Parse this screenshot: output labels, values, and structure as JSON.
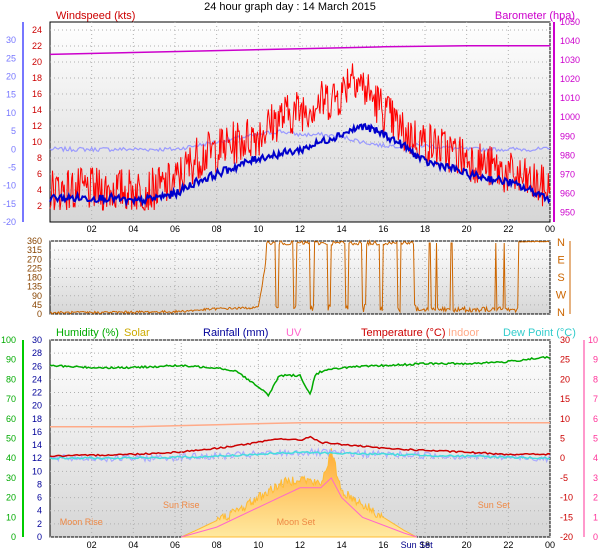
{
  "title": "24 hour graph day : 14 March 2015",
  "colors": {
    "windspeed": "#ff0000",
    "windaverage": "#0000cc",
    "windgust_text": "#cc0000",
    "barometer": "#cc00cc",
    "temperature_scale": "#7777ff",
    "direction": "#cc6600",
    "humidity": "#00aa00",
    "solar": "#ffbb33",
    "rainfall": "#000099",
    "uv": "#ff66cc",
    "temperature": "#cc0000",
    "indoor": "#ffaa88",
    "dewpoint": "#33cccc",
    "dewpoint_line": "#44dddd",
    "leftaxis": "#00cc00",
    "rightaxis": "#ff3399"
  },
  "chart_data": [
    {
      "type": "line",
      "name": "wind",
      "title": "24 hour graph day : 14 March 2015",
      "legend": {
        "windspeed": "Windspeed (kts)",
        "barometer": "Barometer (hpa)"
      },
      "x_ticks": [
        "02",
        "04",
        "06",
        "08",
        "10",
        "12",
        "14",
        "16",
        "18",
        "20",
        "22",
        "00"
      ],
      "x_range_hours": [
        0,
        24
      ],
      "y_left_outer": {
        "range": [
          -20,
          35
        ],
        "ticks": [
          "-20",
          "-15",
          "-10",
          "-5",
          "0",
          "5",
          "10",
          "15",
          "20",
          "25",
          "30"
        ]
      },
      "y_left_inner": {
        "label": "Windspeed (kts)",
        "range": [
          0,
          25
        ],
        "ticks": [
          "2",
          "4",
          "6",
          "8",
          "10",
          "12",
          "14",
          "16",
          "18",
          "20",
          "22",
          "24"
        ]
      },
      "y_right": {
        "label": "Barometer (hpa)",
        "range": [
          945,
          1050
        ],
        "ticks": [
          "950",
          "960",
          "970",
          "980",
          "990",
          "1000",
          "1010",
          "1020",
          "1030",
          "1040",
          "1050"
        ]
      },
      "series": [
        {
          "name": "Windspeed (kts)",
          "key": "windspeed",
          "axis": "left",
          "hours": [
            0,
            1,
            2,
            3,
            4,
            5,
            6,
            7,
            8,
            9,
            10,
            11,
            12,
            13,
            14,
            14.5,
            15,
            16,
            17,
            18,
            19,
            20,
            21,
            22,
            23,
            24
          ],
          "values": [
            4,
            4,
            4,
            4,
            4,
            4,
            5,
            8,
            9,
            10,
            11,
            13,
            14,
            15,
            16,
            19,
            17,
            14,
            11,
            10,
            9,
            8,
            7,
            6,
            5,
            4
          ]
        },
        {
          "key": "windaverage",
          "axis": "left",
          "hours": [
            0,
            1,
            2,
            3,
            4,
            5,
            6,
            7,
            8,
            9,
            10,
            11,
            12,
            13,
            14,
            15,
            16,
            17,
            18,
            19,
            20,
            21,
            22,
            23,
            24
          ],
          "values": [
            3,
            3,
            3,
            3,
            2.5,
            3,
            3.5,
            5,
            6,
            7,
            8,
            8.5,
            9,
            10,
            11,
            12,
            11,
            9.5,
            7.5,
            7,
            6,
            5.5,
            5,
            4,
            3
          ]
        },
        {
          "key": "temperature_outer",
          "axis": "outer",
          "hours": [
            0,
            2,
            4,
            6,
            8,
            10,
            11,
            12,
            13,
            14,
            15,
            16,
            18,
            20,
            22,
            24
          ],
          "values": [
            0,
            0,
            0,
            0,
            2,
            4,
            5,
            4,
            4,
            3.5,
            2,
            1,
            1,
            0,
            0,
            0
          ]
        },
        {
          "name": "Barometer (hpa)",
          "key": "barometer",
          "axis": "right",
          "hours": [
            0,
            4,
            8,
            12,
            16,
            20,
            24
          ],
          "values": [
            1033,
            1034,
            1035,
            1036,
            1037,
            1037.5,
            1037.5
          ]
        }
      ]
    },
    {
      "type": "line",
      "name": "direction",
      "y_left": {
        "range": [
          0,
          360
        ],
        "ticks": [
          "0",
          "45",
          "90",
          "135",
          "180",
          "225",
          "270",
          "315",
          "360"
        ]
      },
      "y_right": {
        "ticks": [
          "N",
          "E",
          "S",
          "W",
          "N"
        ]
      },
      "x_range_hours": [
        0,
        24
      ],
      "series": [
        {
          "key": "direction",
          "hours": [
            0,
            6,
            8,
            10,
            10.5,
            10.6,
            11,
            11.1,
            12,
            12.1,
            13,
            14,
            16,
            17.7,
            17.8,
            18,
            18.3,
            19,
            20,
            21,
            22,
            22.5,
            24
          ],
          "values": [
            0,
            5,
            20,
            25,
            340,
            20,
            345,
            10,
            330,
            15,
            355,
            355,
            355,
            355,
            20,
            355,
            20,
            10,
            15,
            10,
            20,
            355,
            355
          ]
        }
      ]
    },
    {
      "type": "line",
      "name": "climate",
      "legend": {
        "humidity": "Humidity (%)",
        "solar": "Solar",
        "rainfall": "Rainfall (mm)",
        "uv": "UV",
        "temperature": "Temperature (°C)",
        "indoor": "Indoor",
        "dewpoint": "Dew Point (°C)"
      },
      "x_ticks": [
        "02",
        "04",
        "06",
        "08",
        "10",
        "12",
        "14",
        "16",
        "18",
        "20",
        "22",
        "00"
      ],
      "x_range_hours": [
        0,
        24
      ],
      "y_left_outer": {
        "range": [
          0,
          100
        ],
        "ticks": [
          "0",
          "10",
          "20",
          "30",
          "40",
          "50",
          "60",
          "70",
          "80",
          "90",
          "100"
        ]
      },
      "y_left_inner": {
        "label": "Rainfall (mm)",
        "range": [
          0,
          30
        ],
        "ticks": [
          "0",
          "2",
          "4",
          "6",
          "8",
          "10",
          "12",
          "14",
          "16",
          "18",
          "20",
          "22",
          "24",
          "26",
          "28",
          "30"
        ]
      },
      "y_right_inner": {
        "label": "Temperature (°C)",
        "range": [
          -20,
          30
        ],
        "ticks": [
          "-20",
          "-15",
          "-10",
          "-5",
          "0",
          "5",
          "10",
          "15",
          "20",
          "25",
          "30"
        ]
      },
      "y_right_outer": {
        "label": "UV",
        "range": [
          0,
          10
        ],
        "ticks": [
          "0",
          "1",
          "2",
          "3",
          "4",
          "5",
          "6",
          "7",
          "8",
          "9",
          "10"
        ]
      },
      "annotations": [
        {
          "text": "Moon Rise",
          "hour": 1.5
        },
        {
          "text": "Sun Rise",
          "hour": 6.3
        },
        {
          "text": "Moon Set",
          "hour": 11.8
        },
        {
          "text": "Sun Set",
          "hour": 17.6
        },
        {
          "text": "Sun Set",
          "hour": 21.3
        }
      ],
      "series": [
        {
          "name": "Humidity (%)",
          "key": "humidity",
          "axis": "left_outer",
          "hours": [
            0,
            2,
            4,
            6,
            8,
            9,
            10,
            10.5,
            11,
            12,
            12.5,
            12.7,
            13,
            14,
            16,
            18,
            20,
            22,
            23.5,
            24
          ],
          "values": [
            87,
            86,
            86,
            87,
            86,
            84,
            76,
            72,
            82,
            82,
            72,
            82,
            84,
            86,
            87,
            88,
            88,
            89,
            91,
            91
          ]
        },
        {
          "name": "Indoor",
          "key": "indoor",
          "axis": "right_inner",
          "hours": [
            0,
            4,
            8,
            12,
            16,
            20,
            24
          ],
          "values": [
            8,
            8,
            8.5,
            9,
            9,
            9,
            9
          ]
        },
        {
          "name": "Temperature (°C)",
          "key": "temperature",
          "axis": "right_inner",
          "hours": [
            0,
            4,
            6,
            8,
            10,
            11,
            12,
            12.5,
            13,
            14,
            16,
            18,
            20,
            22,
            24
          ],
          "values": [
            0.5,
            1,
            1.5,
            2.5,
            4,
            5,
            4.5,
            5.5,
            4,
            3.5,
            2.5,
            2,
            1.5,
            1,
            1
          ]
        },
        {
          "name": "Dew Point (°C)",
          "key": "dewpoint",
          "axis": "right_inner",
          "hours": [
            0,
            4,
            8,
            12,
            16,
            20,
            24
          ],
          "values": [
            0,
            0,
            0.5,
            1.5,
            1,
            0.5,
            0
          ]
        },
        {
          "name": "Solar",
          "key": "solar",
          "axis": "left_inner",
          "hours": [
            6.3,
            7,
            8,
            9,
            10,
            11,
            12,
            13,
            13.5,
            14,
            15,
            16,
            17,
            17.6
          ],
          "values": [
            0,
            1,
            2.5,
            4,
            6,
            8,
            9,
            8,
            13,
            7,
            5,
            3,
            1,
            0
          ]
        },
        {
          "name": "UV",
          "key": "uv",
          "axis": "right_outer",
          "hours": [
            6.3,
            8,
            10,
            11,
            12,
            13,
            13.5,
            14,
            15,
            17,
            17.6
          ],
          "values": [
            0,
            0.5,
            1.5,
            2,
            2.5,
            2.5,
            3,
            2,
            1,
            0.2,
            0
          ]
        }
      ]
    }
  ]
}
